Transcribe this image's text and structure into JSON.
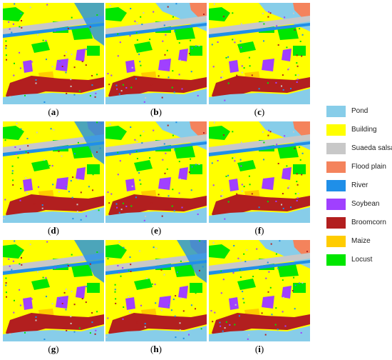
{
  "panels": [
    {
      "id": "a",
      "caption": "a",
      "variant": 0
    },
    {
      "id": "b",
      "caption": "b",
      "variant": 1
    },
    {
      "id": "c",
      "caption": "c",
      "variant": 2
    },
    {
      "id": "d",
      "caption": "d",
      "variant": 3
    },
    {
      "id": "e",
      "caption": "e",
      "variant": 1
    },
    {
      "id": "f",
      "caption": "f",
      "variant": 2
    },
    {
      "id": "g",
      "caption": "g",
      "variant": 0
    },
    {
      "id": "h",
      "caption": "h",
      "variant": 3
    },
    {
      "id": "i",
      "caption": "i",
      "variant": 1
    }
  ],
  "legend": [
    {
      "label": "Pond",
      "color": "#87cde9"
    },
    {
      "label": "Building",
      "color": "#ffff00"
    },
    {
      "label": "Suaeda salsa",
      "color": "#c8c8c8"
    },
    {
      "label": "Flood plain",
      "color": "#f4835c"
    },
    {
      "label": "River",
      "color": "#1f8fe8"
    },
    {
      "label": "Soybean",
      "color": "#a040ff"
    },
    {
      "label": "Broomcorn",
      "color": "#b21f1f"
    },
    {
      "label": "Maize",
      "color": "#ffcc00"
    },
    {
      "label": "Locust",
      "color": "#00e600"
    }
  ]
}
